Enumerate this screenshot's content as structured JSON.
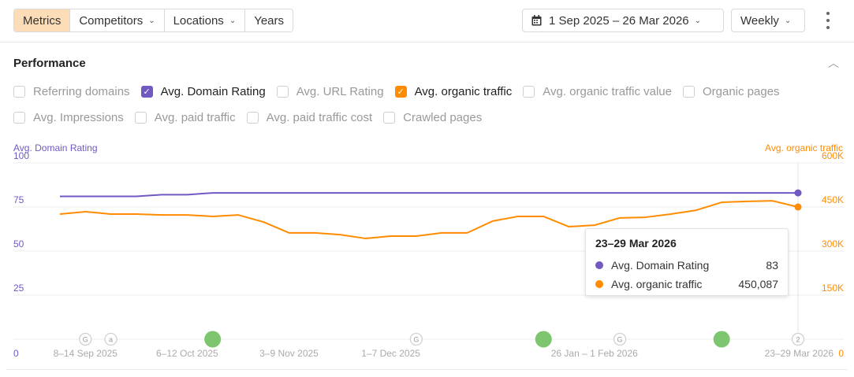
{
  "toolbar": {
    "tabs": [
      {
        "label": "Metrics",
        "active": true
      },
      {
        "label": "Competitors",
        "dropdown": true
      },
      {
        "label": "Locations",
        "dropdown": true
      },
      {
        "label": "Years"
      }
    ],
    "date_range": "1 Sep 2025 – 26 Mar 2026",
    "interval": "Weekly",
    "icons": {
      "calendar": "calendar-icon",
      "chevron": "chevron-down-icon",
      "more": "kebab-icon"
    }
  },
  "section": {
    "title": "Performance",
    "collapse_icon": "chevron-up-icon"
  },
  "metrics": [
    [
      {
        "label": "Referring domains",
        "checked": false
      },
      {
        "label": "Avg. Domain Rating",
        "checked": true,
        "color": "#7159c1"
      },
      {
        "label": "Avg. URL Rating",
        "checked": false
      },
      {
        "label": "Avg. organic traffic",
        "checked": true,
        "color": "#ff8c00"
      },
      {
        "label": "Avg. organic traffic value",
        "checked": false
      },
      {
        "label": "Organic pages",
        "checked": false
      }
    ],
    [
      {
        "label": "Avg. Impressions",
        "checked": false
      },
      {
        "label": "Avg. paid traffic",
        "checked": false
      },
      {
        "label": "Avg. paid traffic cost",
        "checked": false
      },
      {
        "label": "Crawled pages",
        "checked": false
      }
    ]
  ],
  "tooltip": {
    "title": "23–29 Mar 2026",
    "rows": [
      {
        "label": "Avg. Domain Rating",
        "value": "83",
        "color": "#7159c1"
      },
      {
        "label": "Avg. organic traffic",
        "value": "450,087",
        "color": "#ff8c00"
      }
    ]
  },
  "chart_data": {
    "type": "line",
    "x": [
      "2025-09-01",
      "2025-09-08",
      "2025-09-15",
      "2025-09-22",
      "2025-09-29",
      "2025-10-06",
      "2025-10-13",
      "2025-10-20",
      "2025-10-27",
      "2025-11-03",
      "2025-11-10",
      "2025-11-17",
      "2025-11-24",
      "2025-12-01",
      "2025-12-08",
      "2025-12-15",
      "2025-12-22",
      "2025-12-29",
      "2026-01-05",
      "2026-01-12",
      "2026-01-19",
      "2026-01-26",
      "2026-02-02",
      "2026-02-09",
      "2026-02-16",
      "2026-02-23",
      "2026-03-02",
      "2026-03-09",
      "2026-03-16",
      "2026-03-23"
    ],
    "x_ticks": [
      {
        "x": "2025-09-08",
        "label": "8–14 Sep 2025"
      },
      {
        "x": "2025-10-06",
        "label": "6–12 Oct 2025"
      },
      {
        "x": "2025-11-03",
        "label": "3–9 Nov 2025"
      },
      {
        "x": "2025-12-01",
        "label": "1–7 Dec 2025"
      },
      {
        "x": "2026-01-26",
        "label": "26 Jan – 1 Feb 2026"
      },
      {
        "x": "2026-03-23",
        "label": "23–29 Mar 2026"
      }
    ],
    "left_axis": {
      "title": "Avg. Domain Rating",
      "range": [
        0,
        100
      ],
      "ticks": [
        "0",
        "25",
        "50",
        "75",
        "100"
      ],
      "color": "#7159c1"
    },
    "right_axis": {
      "title": "Avg. organic traffic",
      "range": [
        0,
        600000
      ],
      "ticks": [
        "0",
        "150K",
        "300K",
        "450K",
        "600K"
      ],
      "color": "#ff8c00"
    },
    "grid": true,
    "series": [
      {
        "name": "Avg. Domain Rating",
        "axis": "left",
        "color": "#7159c1",
        "values": [
          81,
          81,
          81,
          81,
          82,
          82,
          83,
          83,
          83,
          83,
          83,
          83,
          83,
          83,
          83,
          83,
          83,
          83,
          83,
          83,
          83,
          83,
          83,
          83,
          83,
          83,
          83,
          83,
          83,
          83
        ]
      },
      {
        "name": "Avg. organic traffic",
        "axis": "right",
        "color": "#ff8c00",
        "values": [
          426000,
          434000,
          426000,
          426000,
          423000,
          423000,
          418000,
          423000,
          399000,
          362000,
          362000,
          356000,
          343000,
          351000,
          351000,
          362000,
          362000,
          402000,
          418000,
          418000,
          383000,
          388000,
          413000,
          415000,
          426000,
          439000,
          466000,
          469000,
          471000,
          450087
        ]
      }
    ],
    "annotations": [
      {
        "x": "2025-09-08",
        "type": "google-update",
        "label": "G"
      },
      {
        "x": "2025-09-15",
        "type": "ahrefs-update",
        "label": "a"
      },
      {
        "x": "2025-10-13",
        "type": "event",
        "color": "#7dc56f"
      },
      {
        "x": "2025-12-08",
        "type": "google-update",
        "label": "G"
      },
      {
        "x": "2026-01-12",
        "type": "event",
        "color": "#7dc56f"
      },
      {
        "x": "2026-02-02",
        "type": "google-update",
        "label": "G"
      },
      {
        "x": "2026-03-02",
        "type": "event",
        "color": "#7dc56f"
      },
      {
        "x": "2026-03-23",
        "type": "count",
        "label": "2"
      }
    ],
    "highlight": "2026-03-23"
  }
}
